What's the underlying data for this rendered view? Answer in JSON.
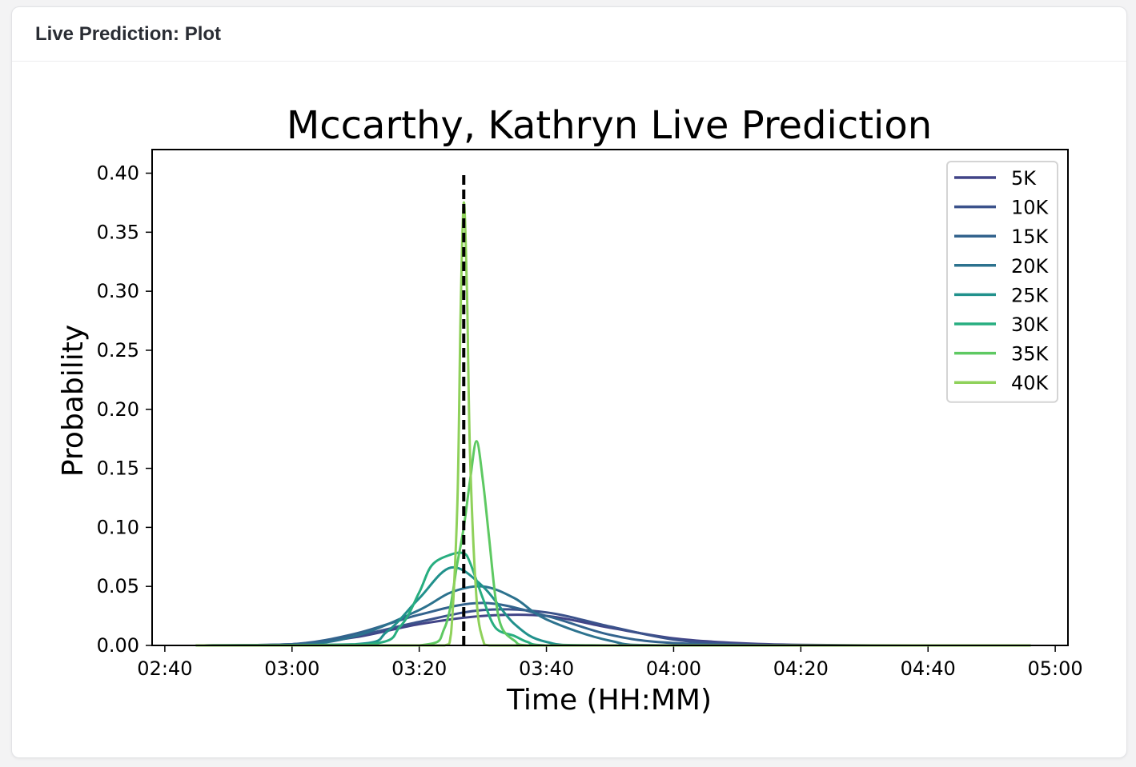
{
  "card": {
    "title": "Live Prediction: Plot"
  },
  "chart_data": {
    "type": "line",
    "title": "Mccarthy, Kathryn Live Prediction",
    "xlabel": "Time (HH:MM)",
    "ylabel": "Probability",
    "xlim_minutes": [
      158,
      302
    ],
    "ylim": [
      0,
      0.42
    ],
    "xticks": [
      "02:40",
      "03:00",
      "03:20",
      "03:40",
      "04:00",
      "04:20",
      "04:40",
      "05:00"
    ],
    "yticks": [
      "0.00",
      "0.05",
      "0.10",
      "0.15",
      "0.20",
      "0.25",
      "0.30",
      "0.35",
      "0.40"
    ],
    "legend_position": "top-right",
    "reference_line": {
      "x": "03:27",
      "y_range": [
        0,
        0.4
      ],
      "style": "dashed",
      "color": "#000000"
    },
    "series": [
      {
        "name": "5K",
        "color": "#414487",
        "x": [
          "02:45",
          "03:00",
          "03:10",
          "03:20",
          "03:30",
          "03:40",
          "03:50",
          "04:00",
          "04:10",
          "04:20",
          "04:40",
          "04:56"
        ],
        "y": [
          0.0,
          0.001,
          0.007,
          0.018,
          0.025,
          0.025,
          0.015,
          0.006,
          0.002,
          0.0005,
          0.0,
          0.0
        ]
      },
      {
        "name": "10K",
        "color": "#3b528b",
        "x": [
          "02:45",
          "03:00",
          "03:10",
          "03:20",
          "03:30",
          "03:40",
          "03:50",
          "04:00",
          "04:10",
          "04:20",
          "04:40",
          "04:56"
        ],
        "y": [
          0.0,
          0.001,
          0.008,
          0.02,
          0.03,
          0.028,
          0.016,
          0.005,
          0.001,
          0.0,
          0.0,
          0.0
        ]
      },
      {
        "name": "15K",
        "color": "#33638d",
        "x": [
          "02:45",
          "03:00",
          "03:10",
          "03:20",
          "03:30",
          "03:40",
          "03:50",
          "04:00",
          "04:20",
          "04:56"
        ],
        "y": [
          0.0,
          0.001,
          0.01,
          0.026,
          0.036,
          0.025,
          0.009,
          0.002,
          0.0,
          0.0
        ]
      },
      {
        "name": "20K",
        "color": "#2c728e",
        "x": [
          "02:45",
          "03:00",
          "03:10",
          "03:20",
          "03:25",
          "03:30",
          "03:35",
          "03:40",
          "03:50",
          "04:00",
          "04:56"
        ],
        "y": [
          0.0,
          0.0,
          0.008,
          0.03,
          0.045,
          0.05,
          0.04,
          0.022,
          0.004,
          0.0,
          0.0
        ]
      },
      {
        "name": "25K",
        "color": "#21918c",
        "x": [
          "02:45",
          "03:10",
          "03:15",
          "03:20",
          "03:25",
          "03:30",
          "03:35",
          "03:40",
          "03:50",
          "04:56"
        ],
        "y": [
          0.0,
          0.001,
          0.012,
          0.04,
          0.066,
          0.05,
          0.018,
          0.003,
          0.0,
          0.0
        ]
      },
      {
        "name": "30K",
        "color": "#28ae80",
        "x": [
          "02:45",
          "03:12",
          "03:17",
          "03:20",
          "03:22",
          "03:25",
          "03:27",
          "03:28",
          "03:30",
          "03:32",
          "03:35",
          "03:37",
          "03:40",
          "04:56"
        ],
        "y": [
          0.0,
          0.001,
          0.016,
          0.045,
          0.068,
          0.077,
          0.078,
          0.07,
          0.04,
          0.015,
          0.008,
          0.003,
          0.0,
          0.0
        ]
      },
      {
        "name": "35K",
        "color": "#5ec962",
        "x": [
          "02:45",
          "03:20",
          "03:24",
          "03:26",
          "03:27",
          "03:28",
          "03:29",
          "03:30",
          "03:31",
          "03:32",
          "03:33",
          "03:35",
          "03:37",
          "04:56"
        ],
        "y": [
          0.0,
          0.0,
          0.015,
          0.07,
          0.1,
          0.14,
          0.173,
          0.14,
          0.09,
          0.04,
          0.015,
          0.004,
          0.0,
          0.0
        ]
      },
      {
        "name": "40K",
        "color": "#8fd15a",
        "x": [
          "02:45",
          "03:24",
          "03:25",
          "03:26",
          "03:26.5",
          "03:27",
          "03:27.5",
          "03:28",
          "03:29",
          "03:30",
          "03:31",
          "04:56"
        ],
        "y": [
          0.0,
          0.0,
          0.01,
          0.12,
          0.28,
          0.375,
          0.3,
          0.16,
          0.04,
          0.005,
          0.0,
          0.0
        ]
      }
    ]
  }
}
